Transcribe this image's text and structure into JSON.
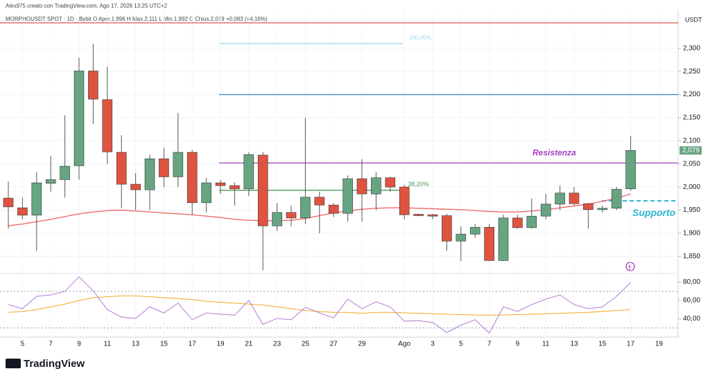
{
  "chart_data": {
    "type": "candlestick",
    "author": "Alex975 creato con TradingView.com, Ago 17, 2026 13:25 UTC+2",
    "title": "MORPHOUSDT SPOT · 1D · Bybit  O  Aper.1,996  H  Max.2,111  L  Min.1,992  C  Chius.2,079  +0,083 (+4,16%)",
    "unit": "USDT",
    "logo": "TradingView",
    "categories": [
      null,
      "5",
      null,
      "7",
      null,
      "9",
      null,
      "11",
      null,
      "13",
      null,
      "15",
      null,
      "17",
      null,
      "19",
      null,
      "21",
      null,
      "23",
      null,
      "25",
      null,
      "27",
      null,
      "29",
      null,
      null,
      "Ago",
      null,
      "3",
      null,
      "5",
      null,
      "7",
      null,
      "9",
      null,
      "11",
      null,
      "13",
      null,
      "15",
      null,
      "17",
      null,
      "19",
      null
    ],
    "open": [
      1976,
      1955,
      1939,
      2008,
      2016,
      2046,
      2251,
      2189,
      2075,
      2006,
      1994,
      2061,
      2022,
      2075,
      1966,
      2009,
      2003,
      1996,
      2069,
      1916,
      1945,
      1933,
      1978,
      1961,
      1943,
      2018,
      1985,
      2020,
      2000,
      1941,
      1940,
      1938,
      1883,
      1898,
      1913,
      1841,
      1933,
      1912,
      1937,
      1963,
      1987,
      1964,
      1951,
      1954,
      1996,
      null,
      null,
      null
    ],
    "high": [
      2012,
      1977,
      2032,
      2067,
      2155,
      2280,
      2310,
      2260,
      2112,
      2030,
      2070,
      2085,
      2160,
      2080,
      2020,
      2015,
      2010,
      2075,
      2076,
      1965,
      1960,
      2150,
      1990,
      1965,
      2025,
      2060,
      2032,
      2022,
      2005,
      1942,
      1942,
      1942,
      1915,
      1920,
      1920,
      1940,
      1940,
      1975,
      1985,
      2003,
      2000,
      1966,
      1960,
      2000,
      2111,
      null,
      null,
      null
    ],
    "low": [
      1910,
      1930,
      1862,
      1990,
      1977,
      2016,
      2136,
      2050,
      1955,
      1950,
      1950,
      2000,
      2000,
      1940,
      1945,
      1985,
      1960,
      1980,
      1820,
      1905,
      1915,
      1920,
      1900,
      1935,
      1925,
      1925,
      1950,
      1990,
      1930,
      1937,
      1930,
      1862,
      1840,
      1890,
      1840,
      1840,
      1910,
      1910,
      1930,
      1950,
      1960,
      1910,
      1945,
      1950,
      1992,
      null,
      null,
      null
    ],
    "close": [
      1957,
      1939,
      2009,
      2016,
      2045,
      2251,
      2190,
      2076,
      2006,
      1994,
      2061,
      2022,
      2075,
      1966,
      2009,
      2003,
      1996,
      2070,
      1916,
      1945,
      1933,
      1978,
      1961,
      1943,
      2018,
      1985,
      2020,
      2000,
      1940,
      1938,
      1937,
      1883,
      1898,
      1913,
      1841,
      1933,
      1912,
      1937,
      1963,
      1987,
      1964,
      1951,
      1954,
      1995,
      2079,
      null,
      null,
      null
    ],
    "up_color": "#67a582",
    "down_color": "#df5440",
    "ylim": [
      1813,
      2382
    ],
    "yticks": [
      {
        "value": 1850,
        "label": "1,850"
      },
      {
        "value": 1900,
        "label": "1,900"
      },
      {
        "value": 1950,
        "label": "1,950"
      },
      {
        "value": 2000,
        "label": "2,000"
      },
      {
        "value": 2050,
        "label": "2,050"
      },
      {
        "value": 2100,
        "label": "2,100"
      },
      {
        "value": 2150,
        "label": "2,150"
      },
      {
        "value": 2200,
        "label": "2,200"
      },
      {
        "value": 2250,
        "label": "2,250"
      },
      {
        "value": 2300,
        "label": "2,300"
      }
    ],
    "last_label": "2,079",
    "ma": {
      "color": "#f06a6a",
      "values": [
        1916,
        1920,
        1925,
        1930,
        1936,
        1942,
        1946,
        1949,
        1950,
        1948,
        1946,
        1944,
        1942,
        1940,
        1937,
        1934,
        1930,
        1928,
        1927,
        1927,
        1928,
        1932,
        1938,
        1944,
        1948,
        1952,
        1954,
        1955,
        1955,
        1954,
        1953,
        1952,
        1951,
        1949,
        1947,
        1946,
        1946,
        1948,
        1951,
        1955,
        1959,
        1963,
        1969,
        1976,
        1985,
        null,
        null,
        null
      ]
    },
    "levels": [
      {
        "value": 2355,
        "color": "#d9534f"
      },
      {
        "label": "100,00%",
        "value": 2310,
        "color": "#9fd8ea"
      },
      {
        "value": 2200,
        "color": "#3d8fb5"
      },
      {
        "label": "Resistenza",
        "value": 2052,
        "color": "#a640c2"
      },
      {
        "label": "38,20%",
        "value": 1993,
        "color": "#4c9a5a"
      },
      {
        "label": "Supporto",
        "value": 1970,
        "color": "#29b6d0",
        "dashed": true
      }
    ],
    "rsi": {
      "color": "#b27ad6",
      "ma_color": "#f5a623",
      "ylim": [
        20,
        89.4
      ],
      "yticks": [
        {
          "value": 40,
          "label": "40,00"
        },
        {
          "value": 60,
          "label": "60,00"
        },
        {
          "value": 80,
          "label": "80,00"
        }
      ],
      "bands": [
        30,
        70
      ],
      "values": [
        55.5,
        51,
        64.5,
        66,
        70,
        85.7,
        70.6,
        50,
        42,
        40.4,
        53,
        46.4,
        57,
        39,
        46.4,
        45,
        44,
        60,
        34,
        40.4,
        39,
        52.5,
        46.4,
        41,
        61.5,
        51,
        58.5,
        53,
        37.4,
        38,
        36,
        25,
        33,
        39,
        24.5,
        53,
        48,
        55.5,
        61.5,
        66,
        55.5,
        51,
        53,
        64.5,
        79.6,
        null,
        null,
        null
      ],
      "ma_values": [
        47,
        48,
        50,
        53,
        56,
        60,
        63,
        64,
        65,
        65,
        64,
        63,
        62,
        61,
        59,
        58,
        57,
        56,
        55,
        53,
        51,
        49,
        48,
        47,
        47,
        46,
        47,
        47,
        46.5,
        46,
        45.5,
        45,
        44.5,
        44,
        44,
        44,
        44.5,
        45,
        45.5,
        46,
        46.5,
        47,
        48,
        49,
        50,
        null,
        null,
        null
      ]
    }
  }
}
